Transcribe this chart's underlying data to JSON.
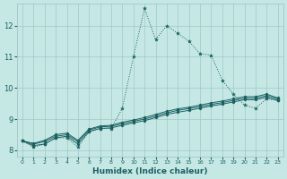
{
  "title": "",
  "xlabel": "Humidex (Indice chaleur)",
  "ylabel": "",
  "bg_color": "#c5e8e5",
  "grid_color": "#a0c8c5",
  "line_color": "#1a6060",
  "x_values": [
    0,
    1,
    2,
    3,
    4,
    5,
    6,
    7,
    8,
    9,
    10,
    11,
    12,
    13,
    14,
    15,
    16,
    17,
    18,
    19,
    20,
    21,
    22,
    23
  ],
  "line1": [
    8.3,
    8.1,
    8.2,
    8.4,
    8.4,
    8.1,
    8.6,
    8.7,
    8.7,
    9.35,
    11.0,
    12.55,
    11.55,
    12.0,
    11.75,
    11.5,
    11.1,
    11.05,
    10.25,
    9.8,
    9.45,
    9.35,
    9.65,
    9.6
  ],
  "line2": [
    8.3,
    8.15,
    8.2,
    8.4,
    8.45,
    8.2,
    8.6,
    8.7,
    8.72,
    8.8,
    8.88,
    8.95,
    9.05,
    9.15,
    9.22,
    9.28,
    9.35,
    9.42,
    9.48,
    9.55,
    9.62,
    9.62,
    9.7,
    9.6
  ],
  "line3": [
    8.3,
    8.2,
    8.28,
    8.45,
    8.5,
    8.28,
    8.65,
    8.75,
    8.77,
    8.85,
    8.93,
    9.0,
    9.1,
    9.2,
    9.28,
    9.34,
    9.4,
    9.47,
    9.53,
    9.6,
    9.67,
    9.67,
    9.75,
    9.65
  ],
  "line4": [
    8.3,
    8.22,
    8.32,
    8.5,
    8.55,
    8.32,
    8.68,
    8.78,
    8.8,
    8.9,
    8.97,
    9.05,
    9.15,
    9.25,
    9.33,
    9.38,
    9.45,
    9.52,
    9.58,
    9.65,
    9.72,
    9.72,
    9.8,
    9.68
  ],
  "ylim": [
    7.8,
    12.7
  ],
  "xlim": [
    -0.5,
    23.5
  ],
  "yticks": [
    8,
    9,
    10,
    11,
    12
  ],
  "xticks": [
    0,
    1,
    2,
    3,
    4,
    5,
    6,
    7,
    8,
    9,
    10,
    11,
    12,
    13,
    14,
    15,
    16,
    17,
    18,
    19,
    20,
    21,
    22,
    23
  ]
}
